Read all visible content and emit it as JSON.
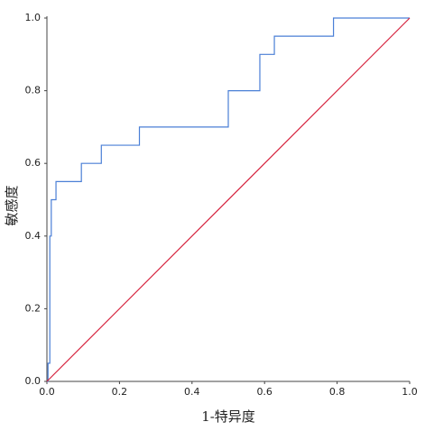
{
  "chart_data": {
    "type": "line",
    "xlabel": "1-特异度",
    "ylabel": "敏感度",
    "xlim": [
      0,
      1
    ],
    "ylim": [
      0,
      1
    ],
    "xticks": [
      {
        "value": 0,
        "label": "0.0"
      },
      0.2,
      0.4,
      0.6,
      0.8,
      {
        "value": 1,
        "label": "1.0"
      }
    ],
    "yticks": [
      {
        "value": 0,
        "label": "0.0"
      },
      0.2,
      0.4,
      0.6,
      0.8,
      {
        "value": 1,
        "label": "1.0"
      }
    ],
    "grid": false,
    "series": [
      {
        "color": "#4a7fd6",
        "x": [
          0,
          0.003,
          0.003,
          0.008,
          0.008,
          0.012,
          0.012,
          0.025,
          0.025,
          0.095,
          0.095,
          0.15,
          0.15,
          0.255,
          0.255,
          0.5,
          0.5,
          0.587,
          0.587,
          0.627,
          0.627,
          0.79,
          0.79,
          1
        ],
        "values": [
          0,
          0,
          0.05,
          0.05,
          0.4,
          0.4,
          0.5,
          0.5,
          0.55,
          0.55,
          0.6,
          0.6,
          0.65,
          0.65,
          0.7,
          0.7,
          0.8,
          0.8,
          0.9,
          0.9,
          0.95,
          0.95,
          1,
          1
        ]
      },
      {
        "color": "#d6223d",
        "x": [
          0,
          1
        ],
        "values": [
          0,
          1
        ]
      }
    ]
  }
}
